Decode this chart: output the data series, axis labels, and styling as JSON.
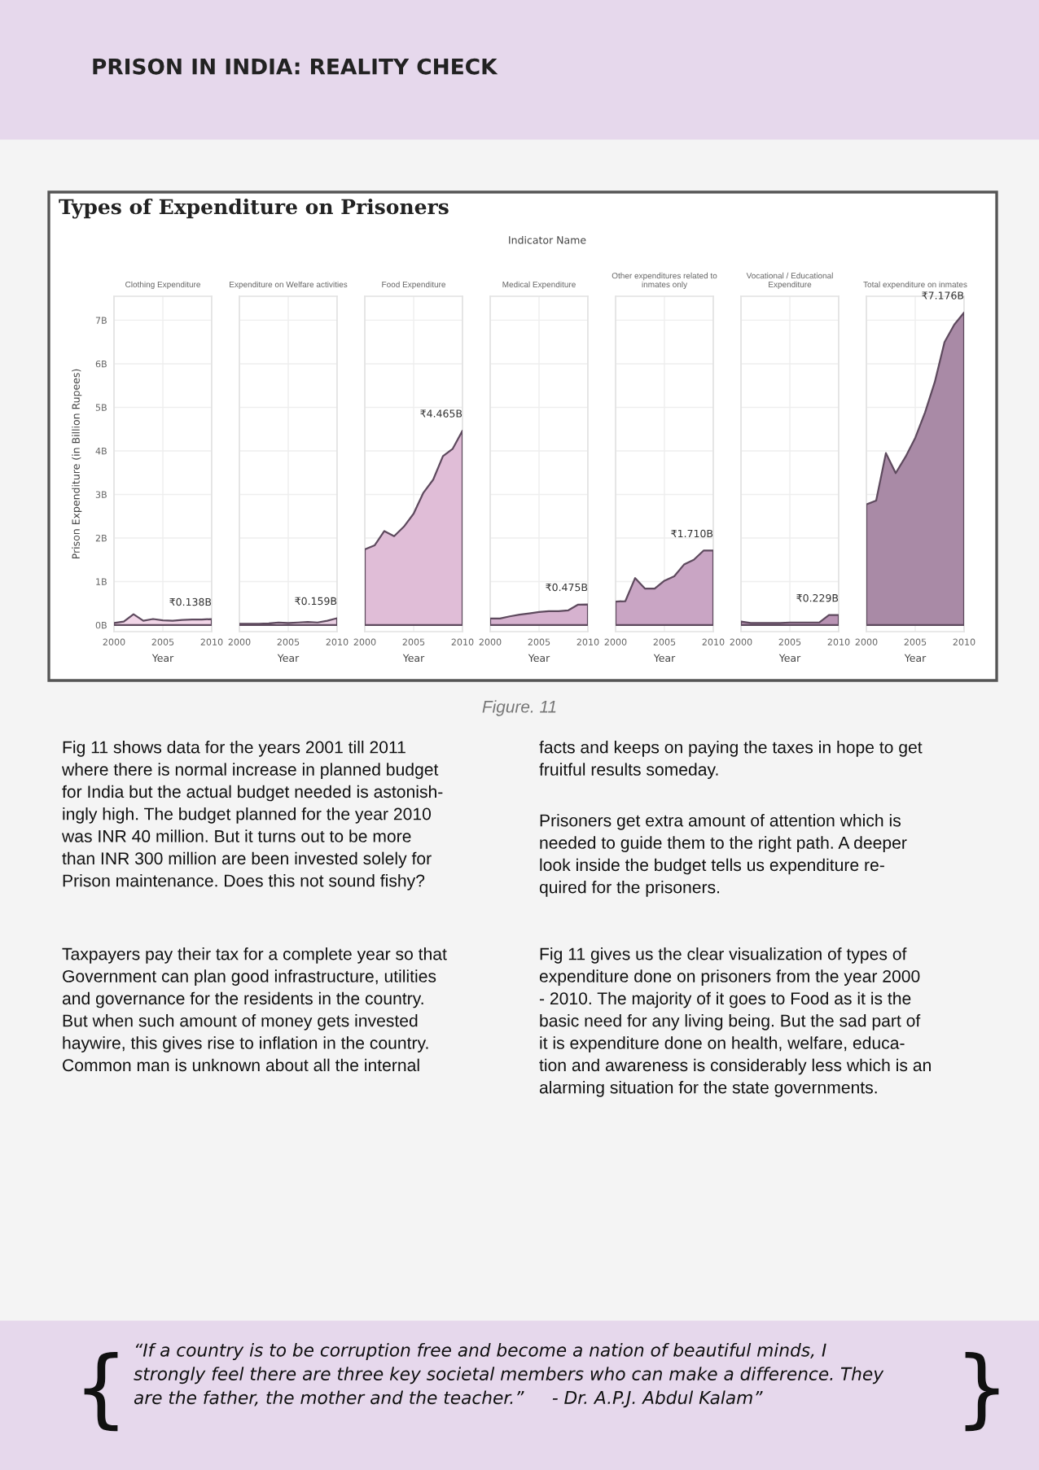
{
  "chart_data": [
    {
      "type": "area",
      "title": "Clothing Expenditure",
      "xlabel": "Year",
      "ylabel": "Prison Expenditure (in Billion Rupees)",
      "x": [
        2000,
        2001,
        2002,
        2003,
        2004,
        2005,
        2006,
        2007,
        2008,
        2009,
        2010
      ],
      "xlim": [
        2000,
        2010
      ],
      "xticks": [
        2000,
        2005,
        2010
      ],
      "ylim": [
        -0.15,
        7.55
      ],
      "yticks": [
        {
          "value": 0,
          "label": "0B"
        },
        {
          "value": 1,
          "label": "1B"
        },
        {
          "value": 2,
          "label": "2B"
        },
        {
          "value": 3,
          "label": "3B"
        },
        {
          "value": 4,
          "label": "4B"
        },
        {
          "value": 5,
          "label": "5B"
        },
        {
          "value": 6,
          "label": "6B"
        },
        {
          "value": 7,
          "label": "7B"
        }
      ],
      "grid": true,
      "series": [
        {
          "color": "#f2d6e8",
          "values": [
            0.05,
            0.08,
            0.25,
            0.1,
            0.14,
            0.11,
            0.1,
            0.12,
            0.13,
            0.13,
            0.138
          ],
          "value_labels": [
            null,
            null,
            null,
            null,
            null,
            null,
            null,
            null,
            null,
            null,
            "₹0.138B"
          ]
        }
      ]
    },
    {
      "type": "other",
      "title": "PRISON IN INDIA: REALITY CHECK",
      "annotations": [
        "Types of Expenditure on Prisoners",
        "Indicator Name",
        "Figure. 11",
        "Fig 11 shows data for the years 2001 till 2011\nwhere there is normal increase in planned budget\nfor India but the actual budget needed is astonish-\ningly high. The budget planned for the year 2010\nwas INR 40 million. But it turns out to be more\nthan INR 300 million are been invested solely for\nPrison maintenance. Does this not sound fishy?",
        "Taxpayers pay their tax for a complete year so that\nGovernment can plan good infrastructure, utilities\nand governance for the residents in the country.\nBut when such amount of money gets invested\nhaywire, this gives rise to inflation in the country.\nCommon man is unknown about all the internal",
        "facts and keeps on paying the taxes in hope to get\nfruitful results someday.",
        "Prisoners get extra amount of attention which is\nneeded to guide them to the right path. A deeper\nlook inside the budget tells us expenditure re-\nquired for the prisoners.",
        "Fig 11 gives us the clear visualization of types of\nexpenditure done on prisoners from the year 2000\n- 2010. The majority of it goes to Food as it is the\nbasic need for any living being. But the sad part of\nit is expenditure done on health, welfare, educa-\ntion and awareness is considerably less which is an\nalarming situation for the state governments.",
        "{",
        "“If a country is to be corruption free and become a nation of beautiful minds, I\nstrongly feel there are three key societal members who can make a difference. They\nare the father, the mother and the teacher.”     - Dr. A.P.J. Abdul Kalam”",
        "}"
      ]
    },
    {
      "type": "area",
      "title": "Expenditure on Welfare activities",
      "xlabel": "Year",
      "x": [
        2000,
        2001,
        2002,
        2003,
        2004,
        2005,
        2006,
        2007,
        2008,
        2009,
        2010
      ],
      "xlim": [
        2000,
        2010
      ],
      "xticks": [
        2000,
        2005,
        2010
      ],
      "ylim": [
        -0.15,
        7.55
      ],
      "yticks": [
        0,
        1,
        2,
        3,
        4,
        5,
        6,
        7
      ],
      "grid": true,
      "tick_labels": "x",
      "series": [
        {
          "color": "#ead0e3",
          "values": [
            0.03,
            0.03,
            0.03,
            0.04,
            0.06,
            0.05,
            0.06,
            0.07,
            0.06,
            0.1,
            0.159
          ],
          "value_labels": [
            null,
            null,
            null,
            null,
            null,
            null,
            null,
            null,
            null,
            null,
            "₹0.159B"
          ]
        }
      ]
    },
    {
      "type": "area",
      "title": "Food Expenditure",
      "xlabel": "Year",
      "x": [
        2000,
        2001,
        2002,
        2003,
        2004,
        2005,
        2006,
        2007,
        2008,
        2009,
        2010
      ],
      "xlim": [
        2000,
        2010
      ],
      "xticks": [
        2000,
        2005,
        2010
      ],
      "ylim": [
        -0.15,
        7.55
      ],
      "yticks": [
        0,
        1,
        2,
        3,
        4,
        5,
        6,
        7
      ],
      "grid": true,
      "tick_labels": "x",
      "series": [
        {
          "color": "#e0bdd7",
          "values": [
            1.74,
            1.83,
            2.16,
            2.04,
            2.26,
            2.56,
            3.04,
            3.34,
            3.88,
            4.05,
            4.465
          ],
          "value_labels": [
            null,
            null,
            null,
            null,
            null,
            null,
            null,
            null,
            null,
            null,
            "₹4.465B"
          ]
        }
      ]
    },
    {
      "type": "area",
      "title": "Medical Expenditure",
      "xlabel": "Year",
      "x": [
        2000,
        2001,
        2002,
        2003,
        2004,
        2005,
        2006,
        2007,
        2008,
        2009,
        2010
      ],
      "xlim": [
        2000,
        2010
      ],
      "xticks": [
        2000,
        2005,
        2010
      ],
      "ylim": [
        -0.15,
        7.55
      ],
      "yticks": [
        0,
        1,
        2,
        3,
        4,
        5,
        6,
        7
      ],
      "grid": true,
      "tick_labels": "x",
      "series": [
        {
          "color": "#d6b2cf",
          "values": [
            0.15,
            0.15,
            0.2,
            0.24,
            0.27,
            0.3,
            0.32,
            0.32,
            0.34,
            0.47,
            0.475
          ],
          "value_labels": [
            null,
            null,
            null,
            null,
            null,
            null,
            null,
            null,
            null,
            null,
            "₹0.475B"
          ]
        }
      ]
    },
    {
      "type": "area",
      "title": "Other expenditures related to\ninmates only",
      "xlabel": "Year",
      "x": [
        2000,
        2001,
        2002,
        2003,
        2004,
        2005,
        2006,
        2007,
        2008,
        2009,
        2010
      ],
      "xlim": [
        2000,
        2010
      ],
      "xticks": [
        2000,
        2005,
        2010
      ],
      "ylim": [
        -0.15,
        7.55
      ],
      "yticks": [
        0,
        1,
        2,
        3,
        4,
        5,
        6,
        7
      ],
      "grid": true,
      "tick_labels": "x",
      "series": [
        {
          "color": "#c9a5c4",
          "values": [
            0.54,
            0.55,
            1.08,
            0.84,
            0.84,
            1.02,
            1.12,
            1.39,
            1.5,
            1.71,
            1.71
          ],
          "value_labels": [
            null,
            null,
            null,
            null,
            null,
            null,
            null,
            null,
            null,
            null,
            "₹1.710B"
          ]
        }
      ]
    },
    {
      "type": "area",
      "title": "Vocational / Educational\nExpenditure",
      "xlabel": "Year",
      "x": [
        2000,
        2001,
        2002,
        2003,
        2004,
        2005,
        2006,
        2007,
        2008,
        2009,
        2010
      ],
      "xlim": [
        2000,
        2010
      ],
      "xticks": [
        2000,
        2005,
        2010
      ],
      "ylim": [
        -0.15,
        7.55
      ],
      "yticks": [
        0,
        1,
        2,
        3,
        4,
        5,
        6,
        7
      ],
      "grid": true,
      "tick_labels": "x",
      "series": [
        {
          "color": "#b993b4",
          "values": [
            0.08,
            0.05,
            0.05,
            0.05,
            0.05,
            0.06,
            0.06,
            0.06,
            0.06,
            0.23,
            0.229
          ],
          "value_labels": [
            null,
            null,
            null,
            null,
            null,
            null,
            null,
            null,
            null,
            null,
            "₹0.229B"
          ]
        }
      ]
    },
    {
      "type": "area",
      "title": "Total expenditure on inmates",
      "xlabel": "Year",
      "x": [
        2000,
        2001,
        2002,
        2003,
        2004,
        2005,
        2006,
        2007,
        2008,
        2009,
        2010
      ],
      "xlim": [
        2000,
        2010
      ],
      "xticks": [
        2000,
        2005,
        2010
      ],
      "ylim": [
        -0.15,
        7.55
      ],
      "yticks": [
        0,
        1,
        2,
        3,
        4,
        5,
        6,
        7
      ],
      "grid": true,
      "tick_labels": "x",
      "series": [
        {
          "color": "#a98aa6",
          "values": [
            2.77,
            2.86,
            3.95,
            3.49,
            3.86,
            4.3,
            4.88,
            5.58,
            6.5,
            6.9,
            7.176
          ],
          "value_labels": [
            null,
            null,
            null,
            null,
            null,
            null,
            null,
            null,
            null,
            null,
            "₹7.176B"
          ]
        }
      ]
    }
  ]
}
